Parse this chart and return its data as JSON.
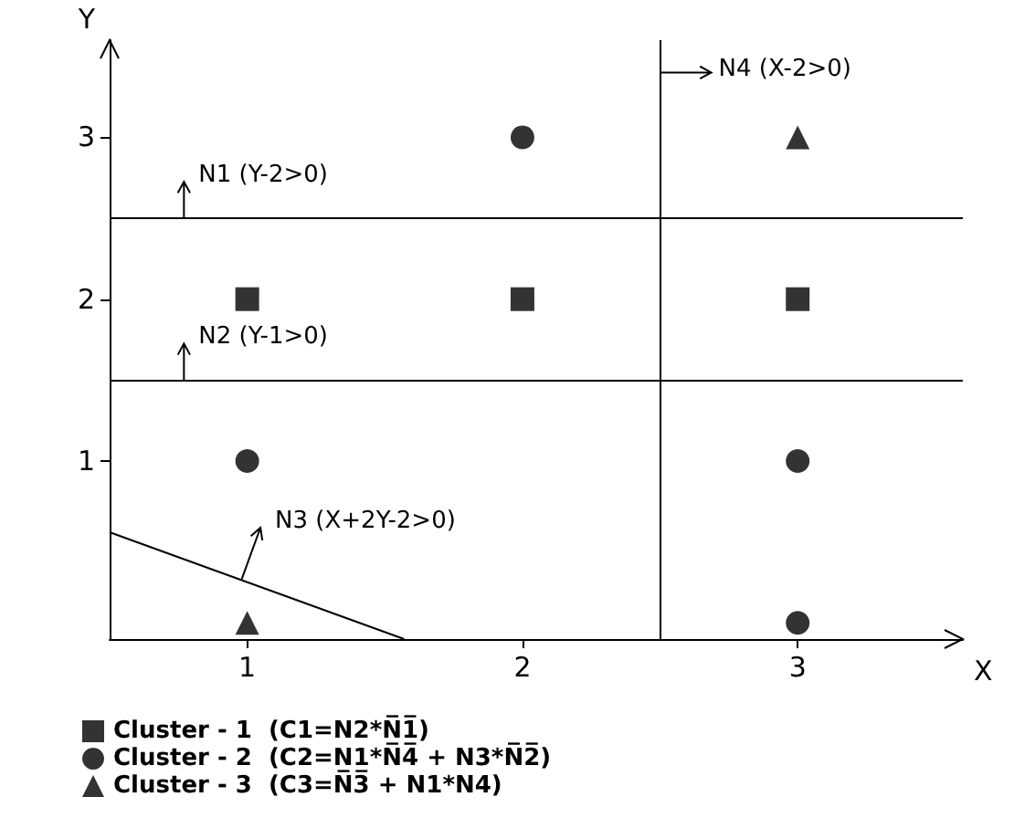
{
  "chart_data": {
    "type": "scatter",
    "xlabel": "X",
    "ylabel": "Y",
    "xlim": [
      0.5,
      3.6
    ],
    "ylim": [
      -0.1,
      3.6
    ],
    "xticks": [
      1,
      2,
      3
    ],
    "yticks": [
      1,
      2,
      3
    ],
    "grid": false,
    "legend": "bottom",
    "series": [
      {
        "name": "Cluster - 1  (C1=N2*N̅1̅)",
        "color": "#000000",
        "marker": "square",
        "x": [
          1,
          2,
          3
        ],
        "values": [
          2,
          2,
          2
        ]
      },
      {
        "name": "Cluster - 2  (C2=N1*N̅4̅ + N3*N̅2̅)",
        "color": "#000000",
        "marker": "circle",
        "x": [
          2,
          1,
          3,
          3
        ],
        "values": [
          3,
          1,
          1,
          0
        ]
      },
      {
        "name": "Cluster - 3  (C3=N̅3̅ + N1*N4)",
        "color": "#000000",
        "marker": "triangle",
        "x": [
          3,
          1
        ],
        "values": [
          3,
          0
        ]
      },
      {
        "type": "line",
        "color": "#000000",
        "marker": "none",
        "x": [
          0.5,
          1.57
        ],
        "values": [
          0.56,
          -0.1
        ]
      }
    ],
    "ref_lines": [
      {
        "axis": "y",
        "value": 2.5
      },
      {
        "axis": "y",
        "value": 1.5
      },
      {
        "axis": "x",
        "value": 2.5
      }
    ],
    "annotations": [
      {
        "text": "N1 (Y-2>0)",
        "x": 0.77,
        "y": 2.5
      },
      {
        "text": "N2 (Y-1>0)",
        "x": 0.77,
        "y": 1.5
      },
      {
        "text": "N3 (X+2Y-2>0)",
        "x": 0.98,
        "y": 0.27
      },
      {
        "text": "N4 (X-2>0)",
        "x": 2.5,
        "y": 3.4
      }
    ]
  }
}
